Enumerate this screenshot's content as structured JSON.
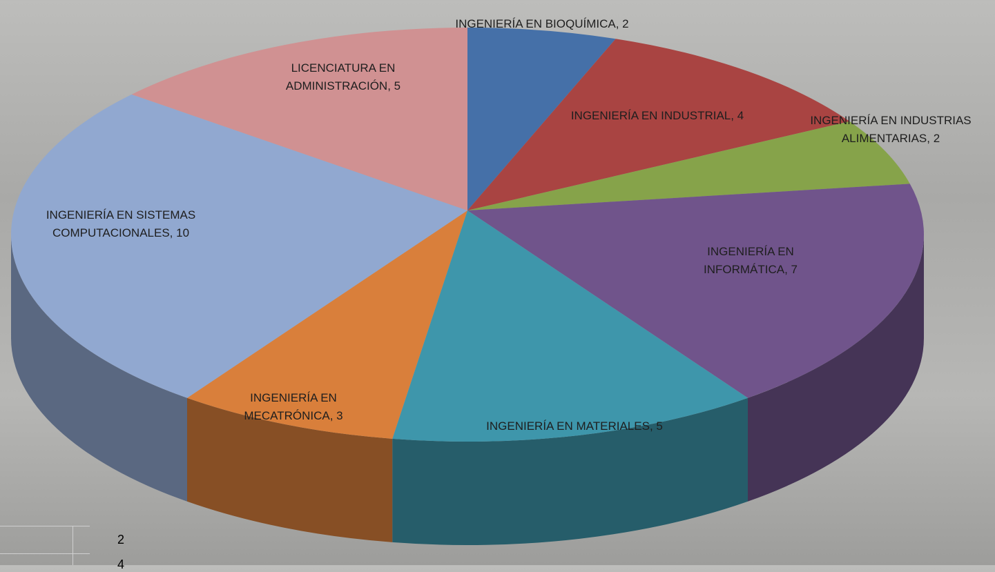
{
  "chart_data": {
    "type": "pie3d",
    "categories": [
      "INGENIERÍA EN BIOQUÍMICA",
      "INGENIERÍA EN INDUSTRIAL",
      "INGENIERÍA EN INDUSTRIAS ALIMENTARIAS",
      "INGENIERÍA EN INFORMÁTICA",
      "INGENIERÍA EN MATERIALES",
      "INGENIERÍA EN MECATRÓNICA",
      "INGENIERÍA EN SISTEMAS COMPUTACIONALES",
      "LICENCIATURA EN ADMINISTRACIÓN"
    ],
    "values": [
      2,
      4,
      2,
      7,
      5,
      3,
      10,
      5
    ],
    "colors": [
      "#4570a8",
      "#a94442",
      "#86a34a",
      "#70548b",
      "#3e96ab",
      "#d97f3b",
      "#91a8d0",
      "#d09192"
    ],
    "label_separator": ", "
  },
  "sheet_cells": [
    "2",
    "4"
  ]
}
